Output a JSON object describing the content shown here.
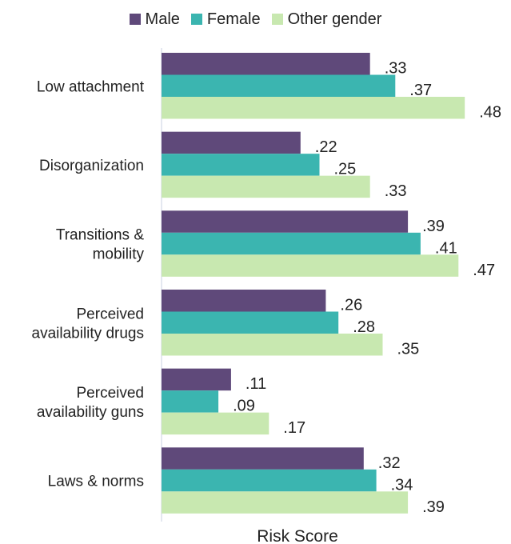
{
  "chart_data": {
    "type": "bar",
    "orientation": "horizontal",
    "title": "",
    "xlabel": "Risk Score",
    "ylabel": "",
    "xlim": [
      0,
      0.5
    ],
    "grid": false,
    "legend_position": "top",
    "categories": [
      [
        "Low attachment"
      ],
      [
        "Disorganization"
      ],
      [
        "Transitions &",
        "mobility"
      ],
      [
        "Perceived",
        "availability drugs"
      ],
      [
        "Perceived",
        "availability guns"
      ],
      [
        "Laws & norms"
      ]
    ],
    "series": [
      {
        "name": "Male",
        "color": "#5f497a",
        "values": [
          0.33,
          0.22,
          0.39,
          0.26,
          0.11,
          0.32
        ],
        "labels": [
          ".33",
          ".22",
          ".39",
          ".26",
          ".11",
          ".32"
        ]
      },
      {
        "name": "Female",
        "color": "#3bb5b0",
        "values": [
          0.37,
          0.25,
          0.41,
          0.28,
          0.09,
          0.34
        ],
        "labels": [
          ".37",
          ".25",
          ".41",
          ".28",
          ".09",
          ".34"
        ]
      },
      {
        "name": "Other gender",
        "color": "#c8e8b0",
        "values": [
          0.48,
          0.33,
          0.47,
          0.35,
          0.17,
          0.39
        ],
        "labels": [
          ".48",
          ".33",
          ".47",
          ".35",
          ".17",
          ".39"
        ]
      }
    ]
  }
}
